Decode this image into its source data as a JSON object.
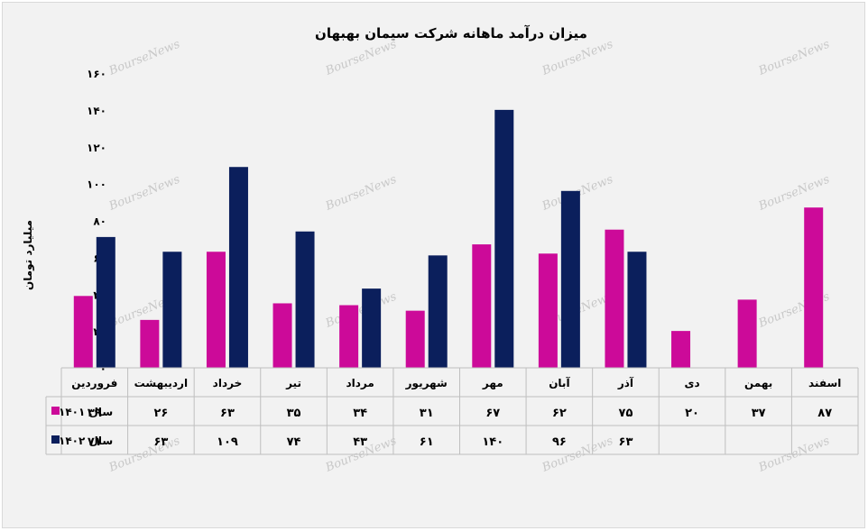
{
  "watermark": "BourseNews",
  "chart_data": {
    "type": "bar",
    "title": "میزان درآمد ماهانه شرکت سیمان بهبهان",
    "ylabel": "میلیارد تومان",
    "ylim": [
      0,
      160
    ],
    "yticks": [
      "۰",
      "۲۰",
      "۴۰",
      "۶۰",
      "۸۰",
      "۱۰۰",
      "۱۲۰",
      "۱۴۰",
      "۱۶۰"
    ],
    "categories": [
      "فروردین",
      "اردیبهشت",
      "خرداد",
      "تیر",
      "مرداد",
      "شهریور",
      "مهر",
      "آبان",
      "آذر",
      "دی",
      "بهمن",
      "اسفند"
    ],
    "series": [
      {
        "name": "سال ۱۴۰۱",
        "color": "#cc0a99",
        "values": [
          39,
          26,
          63,
          35,
          34,
          31,
          67,
          62,
          75,
          20,
          37,
          87
        ],
        "labels": [
          "۳۹",
          "۲۶",
          "۶۳",
          "۳۵",
          "۳۴",
          "۳۱",
          "۶۷",
          "۶۲",
          "۷۵",
          "۲۰",
          "۳۷",
          "۸۷"
        ]
      },
      {
        "name": "سال ۱۴۰۲",
        "color": "#0b1f5c",
        "values": [
          71,
          63,
          109,
          74,
          43,
          61,
          140,
          96,
          63,
          null,
          null,
          null
        ],
        "labels": [
          "۷۱",
          "۶۳",
          "۱۰۹",
          "۷۴",
          "۴۳",
          "۶۱",
          "۱۴۰",
          "۹۶",
          "۶۳",
          "",
          "",
          ""
        ]
      }
    ],
    "grid": false,
    "legend": "data-table"
  }
}
